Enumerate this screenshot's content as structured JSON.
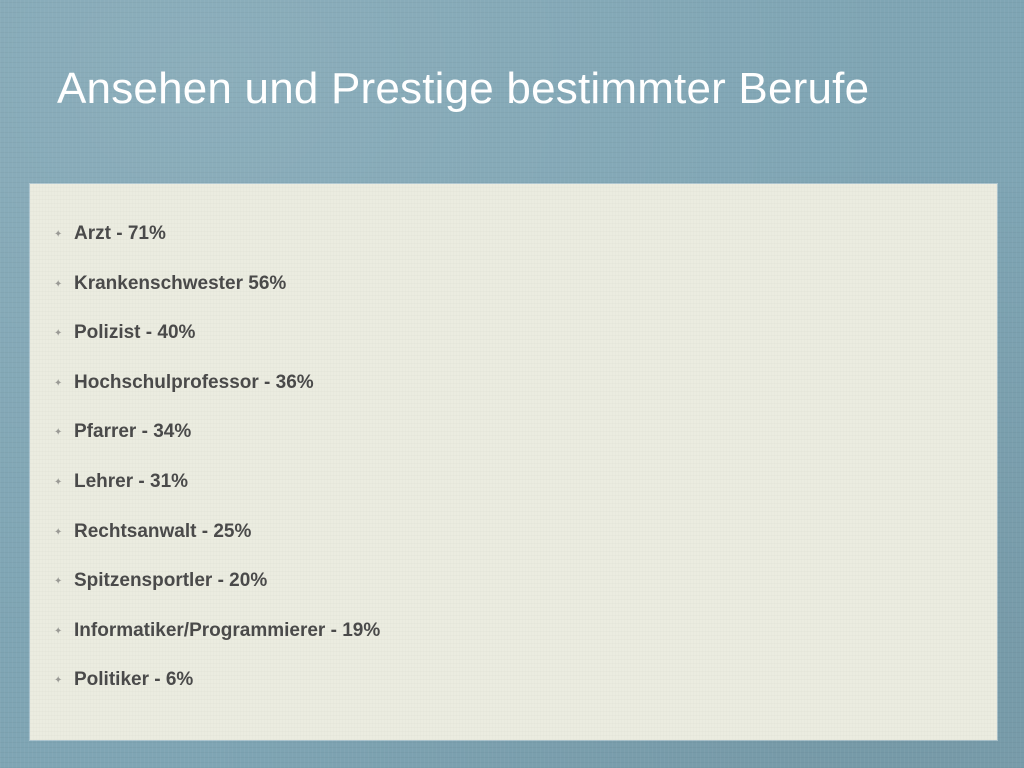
{
  "title": "Ansehen und Prestige bestimmter Berufe",
  "items": [
    {
      "label": "Arzt - 71%"
    },
    {
      "label": "Krankenschwester 56%"
    },
    {
      "label": "Polizist - 40%"
    },
    {
      "label": "Hochschulprofessor - 36%"
    },
    {
      "label": "Pfarrer - 34%"
    },
    {
      "label": "Lehrer - 31%"
    },
    {
      "label": "Rechtsanwalt - 25%"
    },
    {
      "label": "Spitzensportler - 20%"
    },
    {
      "label": "Informatiker/Programmierer - 19%"
    },
    {
      "label": "Politiker - 6%"
    }
  ],
  "icons": {
    "bullet": "diamond-bullet-icon"
  },
  "colors": {
    "background": "#7fa5b4",
    "panel": "#ebece0",
    "title": "#ffffff",
    "text": "#4a4a4a"
  }
}
